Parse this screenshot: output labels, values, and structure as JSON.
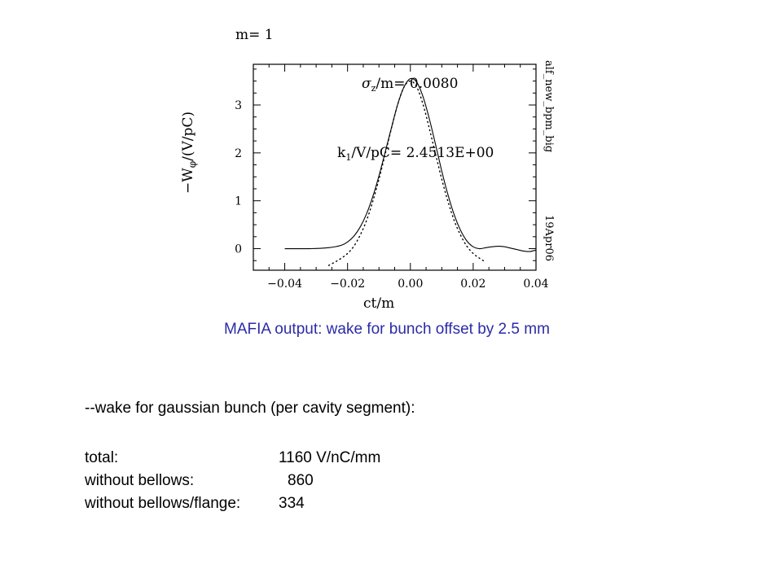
{
  "chart_data": {
    "type": "line",
    "title": "m= 1",
    "xlabel": "ct/m",
    "ylabel_main": "W",
    "ylabel_sub": "φ",
    "ylabel_prefix": "−",
    "ylabel_unit": "/(V/pC)",
    "xlim": [
      -0.05,
      0.04
    ],
    "ylim": [
      -0.45,
      3.85
    ],
    "x_ticks": [
      -0.04,
      -0.02,
      0.0,
      0.02,
      0.04
    ],
    "x_tick_labels": [
      "−0.04",
      "−0.02",
      "0.00",
      "0.02",
      "0.04"
    ],
    "y_ticks": [
      0,
      1,
      2,
      3
    ],
    "y_tick_labels": [
      "0",
      "1",
      "2",
      "3"
    ],
    "annotations": {
      "sigma": "σ",
      "sigma_sub": "z",
      "sigma_text": "/m= 0.0080",
      "k": "k",
      "k_sub": "1",
      "k_text": "/V/pC= 2.4513E+00"
    },
    "side_labels": {
      "file": "alf_new_bpm_big",
      "date": "19Apr06"
    },
    "series": [
      {
        "style": "solid",
        "x": [
          -0.04,
          -0.032,
          -0.026,
          -0.022,
          -0.02,
          -0.018,
          -0.016,
          -0.014,
          -0.012,
          -0.01,
          -0.008,
          -0.006,
          -0.004,
          -0.002,
          0.0,
          0.002,
          0.004,
          0.006,
          0.008,
          0.01,
          0.012,
          0.014,
          0.016,
          0.018,
          0.02,
          0.022,
          0.024,
          0.026,
          0.028,
          0.03,
          0.032,
          0.034,
          0.036,
          0.038,
          0.04
        ],
        "y": [
          0.0,
          0.0,
          0.02,
          0.07,
          0.14,
          0.26,
          0.45,
          0.72,
          1.08,
          1.52,
          2.02,
          2.53,
          3.02,
          3.38,
          3.55,
          3.48,
          3.18,
          2.72,
          2.18,
          1.62,
          1.12,
          0.7,
          0.38,
          0.16,
          0.04,
          0.0,
          0.02,
          0.04,
          0.05,
          0.04,
          0.01,
          -0.02,
          -0.05,
          -0.06,
          -0.03
        ]
      },
      {
        "style": "dotted",
        "x": [
          -0.026,
          -0.024,
          -0.022,
          -0.02,
          -0.018,
          -0.016,
          -0.014,
          -0.012,
          -0.01,
          -0.008,
          -0.006,
          -0.004,
          -0.002,
          0.0,
          0.002,
          0.004,
          0.006,
          0.008,
          0.01,
          0.012,
          0.014,
          0.016,
          0.018,
          0.02,
          0.022,
          0.024
        ],
        "y": [
          -0.35,
          -0.28,
          -0.2,
          -0.1,
          0.05,
          0.28,
          0.58,
          0.98,
          1.45,
          1.98,
          2.52,
          3.02,
          3.38,
          3.5,
          3.38,
          3.02,
          2.52,
          1.98,
          1.45,
          0.98,
          0.58,
          0.28,
          0.05,
          -0.1,
          -0.2,
          -0.28
        ]
      }
    ]
  },
  "caption": "MAFIA output: wake for bunch offset by 2.5 mm",
  "notes": {
    "heading": "--wake for gaussian bunch (per cavity segment):",
    "rows": [
      {
        "label": "total:",
        "value": "1160 V/nC/mm"
      },
      {
        "label": "without bellows:",
        "value": "860"
      },
      {
        "label": "without bellows/flange:",
        "value": "334"
      }
    ]
  }
}
